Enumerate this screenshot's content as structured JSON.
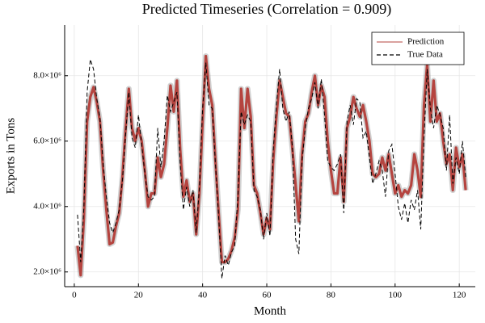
{
  "chart_data": {
    "type": "line",
    "title": "Predicted Timeseries (Correlation = 0.909)",
    "x_label": "Month",
    "y_label": "Exports in Tons",
    "x": [
      1,
      2,
      3,
      4,
      5,
      6,
      7,
      8,
      9,
      10,
      11,
      12,
      13,
      14,
      15,
      16,
      17,
      18,
      19,
      20,
      21,
      22,
      23,
      24,
      25,
      26,
      27,
      28,
      29,
      30,
      31,
      32,
      33,
      34,
      35,
      36,
      37,
      38,
      39,
      40,
      41,
      42,
      43,
      44,
      45,
      46,
      47,
      48,
      49,
      50,
      51,
      52,
      53,
      54,
      55,
      56,
      57,
      58,
      59,
      60,
      61,
      62,
      63,
      64,
      65,
      66,
      67,
      68,
      69,
      70,
      71,
      72,
      73,
      74,
      75,
      76,
      77,
      78,
      79,
      80,
      81,
      82,
      83,
      84,
      85,
      86,
      87,
      88,
      89,
      90,
      91,
      92,
      93,
      94,
      95,
      96,
      97,
      98,
      99,
      100,
      101,
      102,
      103,
      104,
      105,
      106,
      107,
      108,
      109,
      110,
      111,
      112,
      113,
      114,
      115,
      116,
      117,
      118,
      119,
      120,
      121,
      122
    ],
    "series": [
      {
        "name": "Prediction",
        "color": "#b5443f",
        "dash": false,
        "values": [
          2800000,
          1900000,
          3650000,
          6600000,
          7350000,
          7650000,
          7200000,
          6600000,
          5100000,
          3900000,
          2850000,
          2900000,
          3400000,
          3800000,
          4900000,
          6400000,
          7600000,
          6400000,
          6000000,
          6400000,
          6000000,
          5100000,
          4000000,
          4400000,
          4400000,
          5500000,
          4900000,
          5300000,
          6400000,
          7700000,
          6900000,
          7850000,
          5750000,
          4300000,
          4800000,
          4150000,
          4400000,
          3150000,
          4400000,
          6600000,
          8600000,
          7600000,
          7100000,
          5400000,
          3800000,
          2300000,
          2300000,
          2400000,
          2650000,
          3050000,
          3900000,
          7600000,
          6400000,
          7600000,
          6750000,
          4650000,
          4400000,
          3800000,
          3150000,
          3650000,
          3300000,
          5400000,
          6750000,
          7850000,
          7350000,
          6850000,
          6750000,
          5750000,
          4650000,
          3550000,
          5600000,
          6600000,
          6850000,
          7500000,
          8000000,
          7100000,
          7700000,
          7350000,
          6000000,
          5100000,
          4400000,
          4400000,
          5500000,
          4150000,
          6400000,
          6750000,
          7350000,
          7000000,
          6750000,
          7100000,
          6600000,
          6000000,
          5000000,
          4900000,
          5000000,
          5500000,
          5100000,
          5600000,
          5000000,
          4400000,
          4650000,
          4300000,
          4500000,
          4400000,
          4650000,
          5600000,
          5100000,
          4300000,
          7100000,
          8350000,
          6600000,
          7850000,
          6600000,
          6850000,
          6000000,
          5300000,
          5600000,
          4500000,
          5800000,
          5200000,
          5600000,
          4500000
        ]
      },
      {
        "name": "True Data",
        "color": "#000000",
        "dash": true,
        "values": [
          3750000,
          2300000,
          4000000,
          7500000,
          8500000,
          8200000,
          7300000,
          6700000,
          5300000,
          4300000,
          3500000,
          3200000,
          3500000,
          3900000,
          4800000,
          6200000,
          7500000,
          6100000,
          5800000,
          6800000,
          5900000,
          5000000,
          4300000,
          4200000,
          4300000,
          6400000,
          5200000,
          6000000,
          7400000,
          6900000,
          7200000,
          7500000,
          5300000,
          3900000,
          4600000,
          4000000,
          4500000,
          3200000,
          4600000,
          7000000,
          8400000,
          7100000,
          7000000,
          5300000,
          3700000,
          1800000,
          2500000,
          2200000,
          2600000,
          2800000,
          4300000,
          6900000,
          6500000,
          6800000,
          6600000,
          4500000,
          4300000,
          3900000,
          3000000,
          3800000,
          3100000,
          5700000,
          7100000,
          8200000,
          7000000,
          6600000,
          6900000,
          5800000,
          3000000,
          2550000,
          5400000,
          6400000,
          7000000,
          7300000,
          7800000,
          7000000,
          7900000,
          6800000,
          5400000,
          5200000,
          5100000,
          5300000,
          5600000,
          3800000,
          6600000,
          7100000,
          6500000,
          7300000,
          7200000,
          6100000,
          6300000,
          5500000,
          4700000,
          5000000,
          5400000,
          5100000,
          4300000,
          5700000,
          5900000,
          5000000,
          4000000,
          3600000,
          4100000,
          3500000,
          4200000,
          3900000,
          4500000,
          3300000,
          6100000,
          8200000,
          7000000,
          6400000,
          7100000,
          6800000,
          6400000,
          5100000,
          6800000,
          4700000,
          5500000,
          5000000,
          6000000,
          4900000
        ]
      }
    ],
    "xlim": [
      -3,
      125
    ],
    "xticks": [
      0,
      20,
      40,
      60,
      80,
      100,
      120
    ],
    "ylim": [
      1550000,
      9550000
    ],
    "yticks": [
      {
        "value": 2000000,
        "label": "2.0×10⁶"
      },
      {
        "value": 4000000,
        "label": "4.0×10⁶"
      },
      {
        "value": 6000000,
        "label": "6.0×10⁶"
      },
      {
        "value": 8000000,
        "label": "8.0×10⁶"
      }
    ],
    "grid": true,
    "legend": "top-right"
  }
}
